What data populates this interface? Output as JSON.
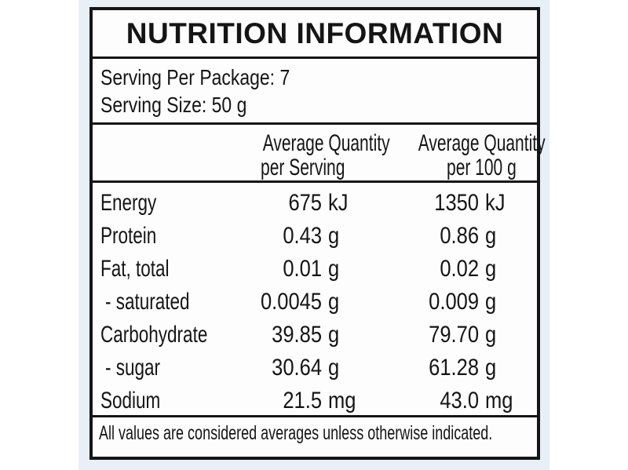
{
  "colors": {
    "page_bg": "#ffffff",
    "photo_bg": "#e9eff6",
    "label_bg": "#fdfdfd",
    "ink": "#151515"
  },
  "label": {
    "title": "NUTRITION INFORMATION",
    "serving_per_package": "Serving Per Package: 7",
    "serving_size": "Serving Size: 50 g",
    "col_serving_header": {
      "line1": "Average Quantity",
      "line2": "per Serving"
    },
    "col_per100_header": {
      "line1": "Average Quantity",
      "line2": "per 100 g"
    },
    "rows": [
      {
        "name": "Energy",
        "serving": {
          "value": "675",
          "unit": "kJ"
        },
        "per100": {
          "value": "1350",
          "unit": "kJ"
        }
      },
      {
        "name": "Protein",
        "serving": {
          "value": "0.43",
          "unit": "g"
        },
        "per100": {
          "value": "0.86",
          "unit": "g"
        }
      },
      {
        "name": "Fat, total",
        "serving": {
          "value": "0.01",
          "unit": "g"
        },
        "per100": {
          "value": "0.02",
          "unit": "g"
        }
      },
      {
        "name": "- saturated",
        "serving": {
          "value": "0.0045",
          "unit": "g"
        },
        "per100": {
          "value": "0.009",
          "unit": "g"
        }
      },
      {
        "name": "Carbohydrate",
        "serving": {
          "value": "39.85",
          "unit": "g"
        },
        "per100": {
          "value": "79.70",
          "unit": "g"
        }
      },
      {
        "name": "- sugar",
        "serving": {
          "value": "30.64",
          "unit": "g"
        },
        "per100": {
          "value": "61.28",
          "unit": "g"
        }
      },
      {
        "name": "Sodium",
        "serving": {
          "value": "21.5",
          "unit": "mg"
        },
        "per100": {
          "value": "43.0",
          "unit": "mg"
        }
      }
    ],
    "footnote": "All values are considered averages unless otherwise indicated."
  }
}
